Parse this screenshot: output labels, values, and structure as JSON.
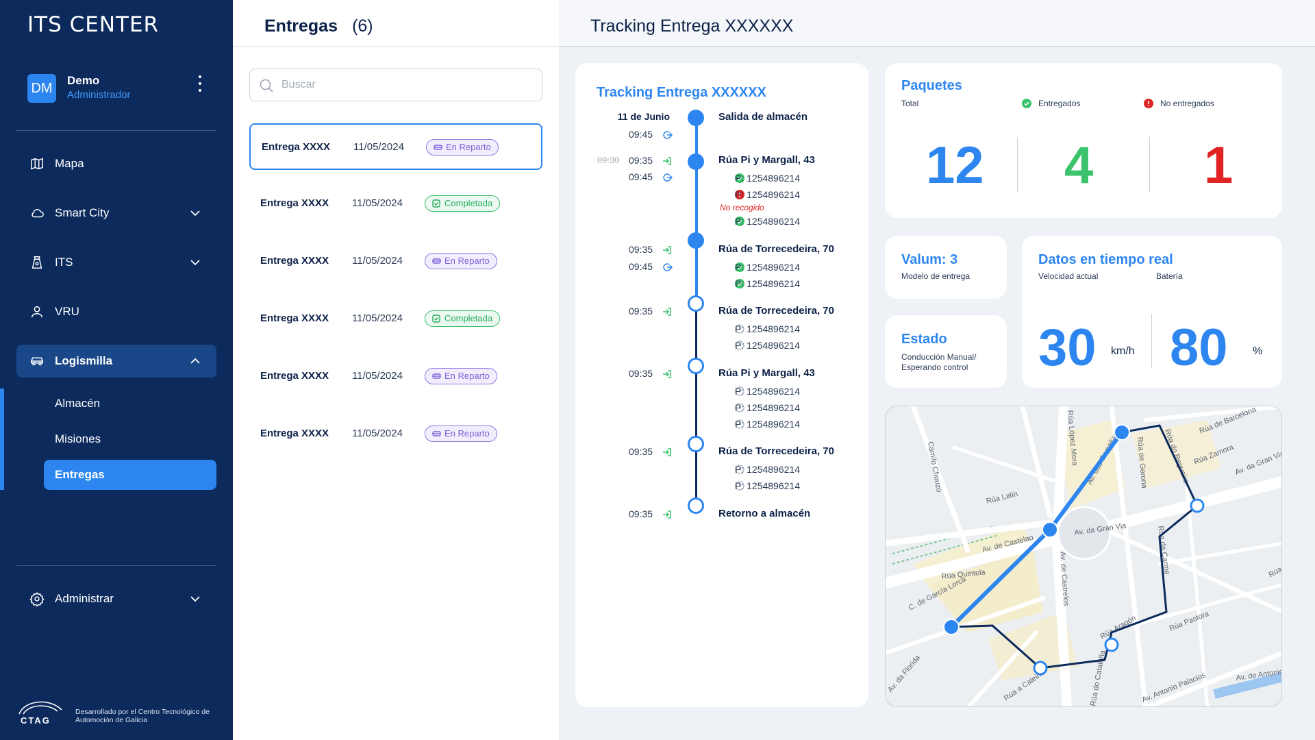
{
  "app": {
    "logo": "ITS CENTER"
  },
  "user": {
    "initials": "DM",
    "name": "Demo",
    "role": "Administrador"
  },
  "sidebar": {
    "items": [
      {
        "label": "Mapa",
        "icon": "map-icon"
      },
      {
        "label": "Smart City",
        "icon": "cloud-icon"
      },
      {
        "label": "ITS",
        "icon": "traffic-icon"
      },
      {
        "label": "VRU",
        "icon": "person-icon"
      },
      {
        "label": "Logismilla",
        "icon": "car-icon"
      }
    ],
    "subitems": [
      "Almacén",
      "Misiones",
      "Entregas"
    ],
    "admin": {
      "label": "Administrar",
      "icon": "gear-icon"
    },
    "footer": {
      "brand": "CTAG",
      "text": "Desarrollado por el Centro Tecnológico de Automoción de Galicia"
    }
  },
  "list": {
    "title": "Entregas",
    "count": "(6)",
    "search_placeholder": "Buscar",
    "rows": [
      {
        "name": "Entrega XXXX",
        "date": "11/05/2024",
        "status": "En Reparto"
      },
      {
        "name": "Entrega XXXX",
        "date": "11/05/2024",
        "status": "Completada"
      },
      {
        "name": "Entrega XXXX",
        "date": "11/05/2024",
        "status": "En Reparto"
      },
      {
        "name": "Entrega XXXX",
        "date": "11/05/2024",
        "status": "Completada"
      },
      {
        "name": "Entrega XXXX",
        "date": "11/05/2024",
        "status": "En Reparto"
      },
      {
        "name": "Entrega XXXX",
        "date": "11/05/2024",
        "status": "En Reparto"
      }
    ]
  },
  "main": {
    "title": "Tracking Entrega XXXXXX"
  },
  "tracking": {
    "title": "Tracking Entrega XXXXXX",
    "date": "11 de Junio",
    "steps": [
      {
        "times": [
          "09:45"
        ],
        "place": "Salida de almacén"
      },
      {
        "old": "09:30",
        "times": [
          "09:35",
          "09:45"
        ],
        "place": "Rúa Pi y Margall, 43",
        "packages": [
          "P: 1254896214",
          "P: 1254896214",
          "P: 1254896214"
        ],
        "note": "No recogido"
      },
      {
        "times": [
          "09:35",
          "09:45"
        ],
        "place": "Rúa de Torrecedeira, 70",
        "packages": [
          "P: 1254896214",
          "P: 1254896214"
        ]
      },
      {
        "times": [
          "09:35"
        ],
        "place": "Rúa de Torrecedeira, 70",
        "packages": [
          "P: 1254896214",
          "P: 1254896214"
        ]
      },
      {
        "times": [
          "09:35"
        ],
        "place": "Rúa Pi y Margall, 43",
        "packages": [
          "P: 1254896214",
          "P: 1254896214",
          "P: 1254896214"
        ]
      },
      {
        "times": [
          "09:35"
        ],
        "place": "Rúa de Torrecedeira, 70",
        "packages": [
          "P: 1254896214",
          "P: 1254896214"
        ]
      },
      {
        "times": [
          "09:35"
        ],
        "place": "Retorno a almacén"
      }
    ]
  },
  "paquetes": {
    "title": "Paquetes",
    "total_label": "Total",
    "total": "12",
    "delivered_label": "Entregados",
    "delivered": "4",
    "failed_label": "No entregados",
    "failed": "1",
    "colors": {
      "total": "#2d86f0",
      "delivered": "#3ac26c",
      "failed": "#e02424"
    }
  },
  "valum": {
    "title": "Valum: 3",
    "subtitle": "Modelo de entrega"
  },
  "estado": {
    "title": "Estado",
    "line1": "Conducción Manual/",
    "line2": "Esperando control"
  },
  "realtime": {
    "title": "Datos en tiempo real",
    "speed_label": "Velocidad actual",
    "speed": "30",
    "speed_unit": "km/h",
    "battery_label": "Batería",
    "battery": "80",
    "battery_unit": "%"
  },
  "map": {
    "streets": [
      "Camilo Chouzo",
      "Rúa López Mora",
      "Av. das Camelias",
      "Rúa de Gerona",
      "Rúa do Regueiro",
      "Rúa de Barcelona",
      "Rúa Zamora",
      "Av. da Gran Via",
      "Rúa Lalín",
      "Av. de Castelao",
      "Av. da Gran Via",
      "Rúa da Carme",
      "Rúa Quintela",
      "C. de García Lorca",
      "Av. de Castrelos",
      "Rúa C",
      "Rúa Pastora",
      "Av. da Florida",
      "Rúa a Caleira",
      "Rúa do Cataluña",
      "Av. Antonio Palacios",
      "Av. de Antonio",
      "Rúa Aragón"
    ]
  }
}
